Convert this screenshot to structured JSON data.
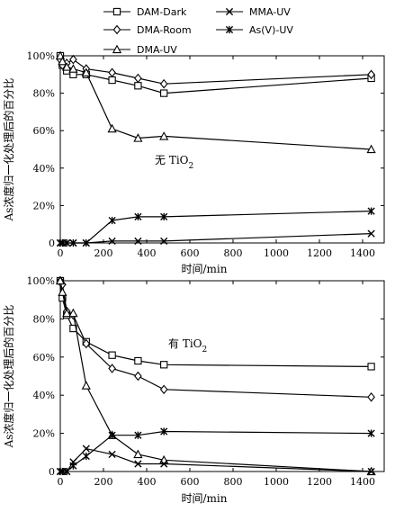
{
  "legend": [
    {
      "name": "DAM-Dark",
      "marker": "square"
    },
    {
      "name": "MMA-UV",
      "marker": "x"
    },
    {
      "name": "DMA-Room",
      "marker": "diamond"
    },
    {
      "name": "As(V)-UV",
      "marker": "asterisk"
    },
    {
      "name": "DMA-UV",
      "marker": "triangle"
    }
  ],
  "chart_data": [
    {
      "type": "line",
      "annotation": {
        "text": "无 TiO",
        "sub": "2"
      },
      "xlabel": "时间/min",
      "ylabel": "As浓度归一化处理后的百分比",
      "xlim": [
        0,
        1500
      ],
      "ylim": [
        0,
        100
      ],
      "xticks": [
        "0",
        "200",
        "400",
        "600",
        "800",
        "1000",
        "1200",
        "1400"
      ],
      "yticks": [
        "0",
        "20%",
        "40%",
        "60%",
        "80%",
        "100%"
      ],
      "series": [
        {
          "name": "DAM-Dark",
          "marker": "square",
          "points": [
            [
              0,
              100
            ],
            [
              10,
              95
            ],
            [
              30,
              92
            ],
            [
              60,
              90
            ],
            [
              120,
              90
            ],
            [
              240,
              87
            ],
            [
              360,
              84
            ],
            [
              480,
              80
            ],
            [
              1440,
              88
            ]
          ]
        },
        {
          "name": "DMA-Room",
          "marker": "diamond",
          "points": [
            [
              0,
              98
            ],
            [
              10,
              95
            ],
            [
              30,
              96
            ],
            [
              60,
              98
            ],
            [
              120,
              93
            ],
            [
              240,
              91
            ],
            [
              360,
              88
            ],
            [
              480,
              85
            ],
            [
              1440,
              90
            ]
          ]
        },
        {
          "name": "DMA-UV",
          "marker": "triangle",
          "points": [
            [
              0,
              100
            ],
            [
              10,
              97
            ],
            [
              30,
              94
            ],
            [
              60,
              93
            ],
            [
              120,
              91
            ],
            [
              240,
              61
            ],
            [
              360,
              56
            ],
            [
              480,
              57
            ],
            [
              1440,
              50
            ]
          ]
        },
        {
          "name": "MMA-UV",
          "marker": "x",
          "points": [
            [
              0,
              0
            ],
            [
              10,
              0
            ],
            [
              30,
              0
            ],
            [
              60,
              0
            ],
            [
              120,
              0
            ],
            [
              240,
              1
            ],
            [
              360,
              1
            ],
            [
              480,
              1
            ],
            [
              1440,
              5
            ]
          ]
        },
        {
          "name": "As(V)-UV",
          "marker": "asterisk",
          "points": [
            [
              0,
              0
            ],
            [
              10,
              0
            ],
            [
              30,
              0
            ],
            [
              60,
              0
            ],
            [
              120,
              0
            ],
            [
              240,
              12
            ],
            [
              360,
              14
            ],
            [
              480,
              14
            ],
            [
              1440,
              17
            ]
          ]
        }
      ]
    },
    {
      "type": "line",
      "annotation": {
        "text": "有 TiO",
        "sub": "2"
      },
      "xlabel": "时间/min",
      "ylabel": "As浓度归一化处理后的百分比",
      "xlim": [
        0,
        1500
      ],
      "ylim": [
        0,
        100
      ],
      "xticks": [
        "0",
        "200",
        "400",
        "600",
        "800",
        "1000",
        "1200",
        "1400"
      ],
      "yticks": [
        "0",
        "20%",
        "40%",
        "60%",
        "80%",
        "100%"
      ],
      "series": [
        {
          "name": "DAM-Dark",
          "marker": "square",
          "points": [
            [
              0,
              100
            ],
            [
              10,
              91
            ],
            [
              30,
              82
            ],
            [
              60,
              75
            ],
            [
              120,
              68
            ],
            [
              240,
              61
            ],
            [
              360,
              58
            ],
            [
              480,
              56
            ],
            [
              1440,
              55
            ]
          ]
        },
        {
          "name": "DMA-Room",
          "marker": "diamond",
          "points": [
            [
              0,
              100
            ],
            [
              10,
              98
            ],
            [
              30,
              84
            ],
            [
              60,
              82
            ],
            [
              120,
              67
            ],
            [
              240,
              54
            ],
            [
              360,
              50
            ],
            [
              480,
              43
            ],
            [
              1440,
              39
            ]
          ]
        },
        {
          "name": "DMA-UV",
          "marker": "triangle",
          "points": [
            [
              0,
              100
            ],
            [
              10,
              94
            ],
            [
              30,
              83
            ],
            [
              60,
              83
            ],
            [
              120,
              45
            ],
            [
              240,
              19
            ],
            [
              360,
              9
            ],
            [
              480,
              6
            ],
            [
              1440,
              0
            ]
          ]
        },
        {
          "name": "MMA-UV",
          "marker": "x",
          "points": [
            [
              0,
              0
            ],
            [
              10,
              0
            ],
            [
              30,
              0
            ],
            [
              60,
              5
            ],
            [
              120,
              12
            ],
            [
              240,
              9
            ],
            [
              360,
              4
            ],
            [
              480,
              4
            ],
            [
              1440,
              0
            ]
          ]
        },
        {
          "name": "As(V)-UV",
          "marker": "asterisk",
          "points": [
            [
              0,
              0
            ],
            [
              10,
              0
            ],
            [
              30,
              0
            ],
            [
              60,
              3
            ],
            [
              120,
              8
            ],
            [
              240,
              19
            ],
            [
              360,
              19
            ],
            [
              480,
              21
            ],
            [
              1440,
              20
            ]
          ]
        }
      ]
    }
  ]
}
